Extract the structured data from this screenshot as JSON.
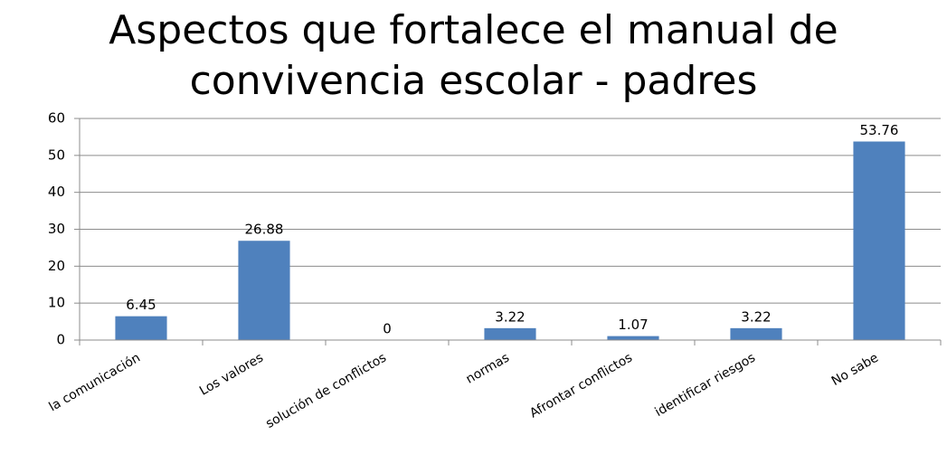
{
  "chart_data": {
    "type": "bar",
    "title": "Aspectos que fortalece el manual de convivencia escolar - padres",
    "categories": [
      "la comunicación",
      "Los valores",
      "solución de conflictos",
      "normas",
      "Afrontar conflictos",
      "identificar riesgos",
      "No sabe"
    ],
    "values": [
      6.45,
      26.88,
      0,
      3.22,
      1.07,
      3.22,
      53.76
    ],
    "color": "#4f81bd",
    "ylim": [
      0,
      60
    ],
    "yticks": [
      0,
      10,
      20,
      30,
      40,
      50,
      60
    ],
    "grid": true
  }
}
